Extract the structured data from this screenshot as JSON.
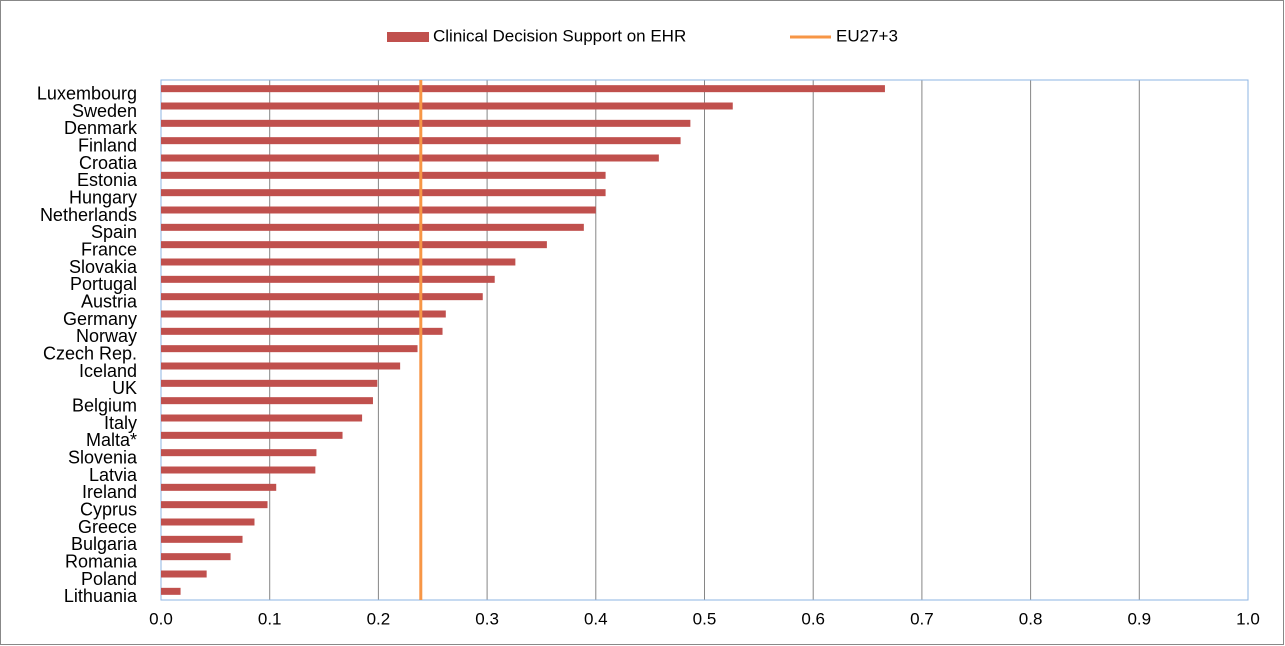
{
  "chart_data": {
    "type": "hbar",
    "categories": [
      "Luxembourg",
      "Sweden",
      "Denmark",
      "Finland",
      "Croatia",
      "Estonia",
      "Hungary",
      "Netherlands",
      "Spain",
      "France",
      "Slovakia",
      "Portugal",
      "Austria",
      "Germany",
      "Norway",
      "Czech Rep.",
      "Iceland",
      "UK",
      "Belgium",
      "Italy",
      "Malta*",
      "Slovenia",
      "Latvia",
      "Ireland",
      "Cyprus",
      "Greece",
      "Bulgaria",
      "Romania",
      "Poland",
      "Lithuania"
    ],
    "series": [
      {
        "name": "Clinical Decision Support on EHR",
        "color": "#c0504d",
        "values": [
          0.666,
          0.526,
          0.487,
          0.478,
          0.458,
          0.409,
          0.409,
          0.4,
          0.389,
          0.355,
          0.326,
          0.307,
          0.296,
          0.262,
          0.259,
          0.236,
          0.22,
          0.199,
          0.195,
          0.185,
          0.167,
          0.143,
          0.142,
          0.106,
          0.098,
          0.086,
          0.075,
          0.064,
          0.042,
          0.018
        ]
      }
    ],
    "reference": {
      "name": "EU27+3",
      "value": 0.239,
      "color": "#f79646"
    },
    "xlim": [
      0,
      1
    ],
    "xticks": [
      {
        "value": 0,
        "label": "0.0"
      },
      0.1,
      0.2,
      0.3,
      0.4,
      0.5,
      0.6,
      0.7,
      0.8,
      0.9,
      {
        "value": 1,
        "label": "1.0"
      }
    ],
    "grid": true
  }
}
